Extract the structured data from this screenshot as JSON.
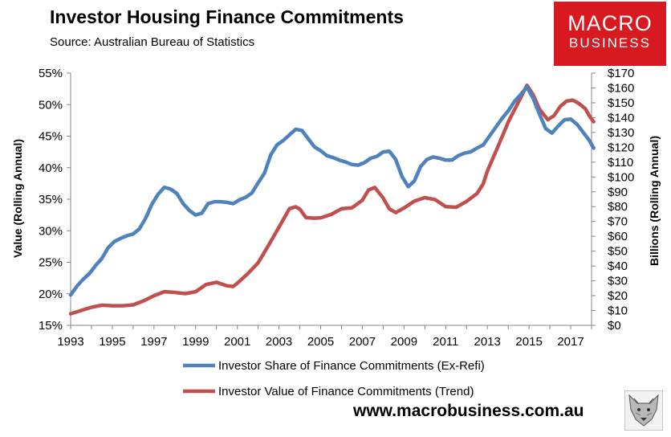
{
  "header": {
    "title": "Investor Housing Finance Commitments",
    "subtitle": "Source: Australian Bureau of Statistics"
  },
  "logo": {
    "line1": "MACRO",
    "line2": "BUSINESS",
    "color": "#d71920"
  },
  "footer": {
    "url": "www.macrobusiness.com.au"
  },
  "chart_data": {
    "type": "line",
    "title": "Investor Housing Finance Commitments",
    "ylabel_left": "Value (Rolling Annual)",
    "ylabel_right": "Billions (Rolling Annual)",
    "xlim": [
      1993,
      2018
    ],
    "ylim_left": [
      15,
      55
    ],
    "ylim_right": [
      0,
      170
    ],
    "x_ticks": [
      1993,
      1995,
      1997,
      1999,
      2001,
      2003,
      2005,
      2007,
      2009,
      2011,
      2013,
      2015,
      2017
    ],
    "x_tick_labels": [
      "1993",
      "1995",
      "1997",
      "1999",
      "2001",
      "2003",
      "2005",
      "2007",
      "2009",
      "2011",
      "2013",
      "2015",
      "2017"
    ],
    "y_left_ticks": [
      15,
      20,
      25,
      30,
      35,
      40,
      45,
      50,
      55
    ],
    "y_left_tick_labels": [
      "15%",
      "20%",
      "25%",
      "30%",
      "35%",
      "40%",
      "45%",
      "50%",
      "55%"
    ],
    "y_right_ticks": [
      0,
      10,
      20,
      30,
      40,
      50,
      60,
      70,
      80,
      90,
      100,
      110,
      120,
      130,
      140,
      150,
      160,
      170
    ],
    "y_right_tick_labels": [
      "$0",
      "$10",
      "$20",
      "$30",
      "$40",
      "$50",
      "$60",
      "$70",
      "$80",
      "$90",
      "$100",
      "$110",
      "$120",
      "$130",
      "$140",
      "$150",
      "$160",
      "$170"
    ],
    "grid": false,
    "legend_position": "bottom",
    "series": [
      {
        "name": "Investor Share of Finance Commitments (Ex-Refi)",
        "axis": "left",
        "color": "#4f81bd",
        "points": [
          [
            1993.0,
            19.8
          ],
          [
            1993.3,
            21.2
          ],
          [
            1993.6,
            22.3
          ],
          [
            1993.9,
            23.2
          ],
          [
            1994.2,
            24.5
          ],
          [
            1994.5,
            25.6
          ],
          [
            1994.8,
            27.3
          ],
          [
            1995.1,
            28.3
          ],
          [
            1995.4,
            28.8
          ],
          [
            1995.7,
            29.2
          ],
          [
            1996.0,
            29.5
          ],
          [
            1996.3,
            30.3
          ],
          [
            1996.6,
            32.0
          ],
          [
            1996.9,
            34.2
          ],
          [
            1997.2,
            35.8
          ],
          [
            1997.5,
            36.9
          ],
          [
            1997.8,
            36.6
          ],
          [
            1998.1,
            35.9
          ],
          [
            1998.4,
            34.3
          ],
          [
            1998.7,
            33.2
          ],
          [
            1999.0,
            32.5
          ],
          [
            1999.3,
            32.8
          ],
          [
            1999.6,
            34.3
          ],
          [
            1999.9,
            34.6
          ],
          [
            2000.2,
            34.6
          ],
          [
            2000.5,
            34.5
          ],
          [
            2000.8,
            34.3
          ],
          [
            2001.1,
            34.9
          ],
          [
            2001.4,
            35.3
          ],
          [
            2001.7,
            36.0
          ],
          [
            2002.0,
            37.6
          ],
          [
            2002.3,
            39.1
          ],
          [
            2002.6,
            42.0
          ],
          [
            2002.9,
            43.6
          ],
          [
            2003.2,
            44.3
          ],
          [
            2003.5,
            45.2
          ],
          [
            2003.8,
            46.1
          ],
          [
            2004.1,
            45.9
          ],
          [
            2004.4,
            44.6
          ],
          [
            2004.7,
            43.3
          ],
          [
            2005.0,
            42.7
          ],
          [
            2005.3,
            41.9
          ],
          [
            2005.6,
            41.6
          ],
          [
            2005.9,
            41.2
          ],
          [
            2006.2,
            40.9
          ],
          [
            2006.5,
            40.5
          ],
          [
            2006.8,
            40.4
          ],
          [
            2007.1,
            40.8
          ],
          [
            2007.4,
            41.5
          ],
          [
            2007.7,
            41.8
          ],
          [
            2008.0,
            42.5
          ],
          [
            2008.3,
            42.6
          ],
          [
            2008.6,
            41.3
          ],
          [
            2008.9,
            38.6
          ],
          [
            2009.2,
            37.0
          ],
          [
            2009.5,
            37.9
          ],
          [
            2009.8,
            40.2
          ],
          [
            2010.1,
            41.3
          ],
          [
            2010.4,
            41.7
          ],
          [
            2010.7,
            41.5
          ],
          [
            2011.0,
            41.2
          ],
          [
            2011.3,
            41.2
          ],
          [
            2011.6,
            41.9
          ],
          [
            2011.9,
            42.3
          ],
          [
            2012.2,
            42.5
          ],
          [
            2012.5,
            43.1
          ],
          [
            2012.8,
            43.6
          ],
          [
            2013.1,
            45.0
          ],
          [
            2013.4,
            46.4
          ],
          [
            2013.7,
            47.8
          ],
          [
            2014.0,
            49.0
          ],
          [
            2014.3,
            50.5
          ],
          [
            2014.6,
            51.6
          ],
          [
            2014.9,
            52.8
          ],
          [
            2015.2,
            51.0
          ],
          [
            2015.5,
            48.5
          ],
          [
            2015.8,
            46.2
          ],
          [
            2016.1,
            45.5
          ],
          [
            2016.4,
            46.6
          ],
          [
            2016.7,
            47.6
          ],
          [
            2017.0,
            47.7
          ],
          [
            2017.3,
            46.9
          ],
          [
            2017.6,
            45.6
          ],
          [
            2017.9,
            44.3
          ],
          [
            2018.1,
            43.1
          ]
        ]
      },
      {
        "name": "Investor Value of Finance Commitments (Trend)",
        "axis": "right",
        "color": "#c0504d",
        "points": [
          [
            1993.0,
            7.8
          ],
          [
            1993.5,
            10.0
          ],
          [
            1994.0,
            12.2
          ],
          [
            1994.5,
            13.6
          ],
          [
            1995.0,
            13.2
          ],
          [
            1995.5,
            13.2
          ],
          [
            1996.0,
            13.8
          ],
          [
            1996.5,
            16.5
          ],
          [
            1997.0,
            20.0
          ],
          [
            1997.5,
            22.7
          ],
          [
            1998.0,
            22.2
          ],
          [
            1998.5,
            21.4
          ],
          [
            1999.0,
            22.7
          ],
          [
            1999.5,
            27.5
          ],
          [
            2000.0,
            29.0
          ],
          [
            2000.5,
            26.7
          ],
          [
            2000.8,
            26.2
          ],
          [
            2001.0,
            28.4
          ],
          [
            2001.5,
            34.8
          ],
          [
            2002.0,
            42.2
          ],
          [
            2002.5,
            54.0
          ],
          [
            2003.0,
            66.2
          ],
          [
            2003.5,
            78.6
          ],
          [
            2003.8,
            79.9
          ],
          [
            2004.0,
            78.3
          ],
          [
            2004.3,
            72.6
          ],
          [
            2004.7,
            72.2
          ],
          [
            2005.0,
            72.5
          ],
          [
            2005.5,
            74.7
          ],
          [
            2006.0,
            78.6
          ],
          [
            2006.5,
            79.2
          ],
          [
            2007.0,
            84.3
          ],
          [
            2007.3,
            91.2
          ],
          [
            2007.6,
            92.9
          ],
          [
            2008.0,
            85.8
          ],
          [
            2008.3,
            78.4
          ],
          [
            2008.6,
            76.0
          ],
          [
            2009.0,
            79.1
          ],
          [
            2009.5,
            83.7
          ],
          [
            2010.0,
            86.1
          ],
          [
            2010.5,
            84.7
          ],
          [
            2011.0,
            80.0
          ],
          [
            2011.5,
            79.6
          ],
          [
            2012.0,
            83.5
          ],
          [
            2012.5,
            88.8
          ],
          [
            2012.8,
            95.3
          ],
          [
            2013.0,
            104.0
          ],
          [
            2013.5,
            120.2
          ],
          [
            2014.0,
            137.0
          ],
          [
            2014.5,
            150.7
          ],
          [
            2014.9,
            161.7
          ],
          [
            2015.2,
            155.4
          ],
          [
            2015.5,
            145.7
          ],
          [
            2015.9,
            138.6
          ],
          [
            2016.2,
            141.3
          ],
          [
            2016.5,
            147.6
          ],
          [
            2016.8,
            151.1
          ],
          [
            2017.1,
            151.8
          ],
          [
            2017.4,
            149.5
          ],
          [
            2017.7,
            146.0
          ],
          [
            2017.9,
            141.1
          ],
          [
            2018.1,
            137.2
          ]
        ]
      }
    ]
  }
}
